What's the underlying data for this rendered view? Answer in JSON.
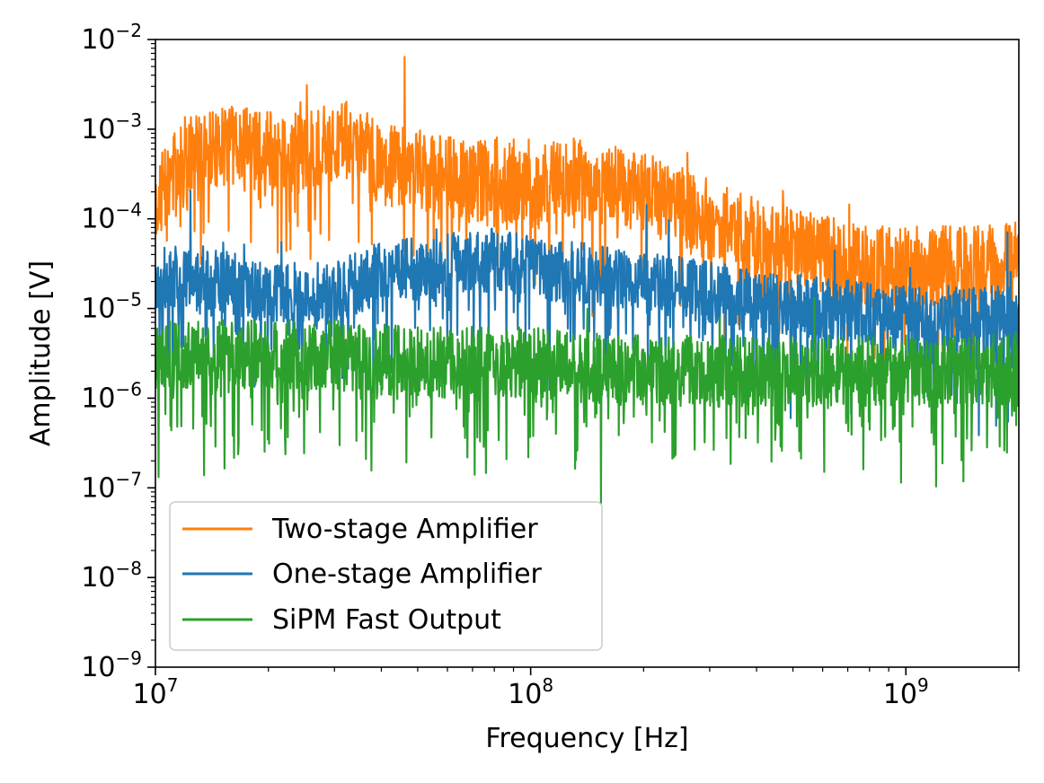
{
  "chart_data": {
    "type": "line",
    "title": "",
    "xlabel": "Frequency [Hz]",
    "ylabel": "Amplitude [V]",
    "xscale": "log",
    "yscale": "log",
    "xlim": [
      10000000,
      2000000000
    ],
    "ylim": [
      1e-09,
      0.01
    ],
    "x_ticks": [
      {
        "base": "10",
        "exp": "7",
        "value": 10000000
      },
      {
        "base": "10",
        "exp": "8",
        "value": 100000000
      },
      {
        "base": "10",
        "exp": "9",
        "value": 1000000000
      }
    ],
    "y_ticks": [
      {
        "base": "10",
        "exp": "−9",
        "value": 1e-09
      },
      {
        "base": "10",
        "exp": "−8",
        "value": 1e-08
      },
      {
        "base": "10",
        "exp": "−7",
        "value": 1e-07
      },
      {
        "base": "10",
        "exp": "−6",
        "value": 1e-06
      },
      {
        "base": "10",
        "exp": "−5",
        "value": 1e-05
      },
      {
        "base": "10",
        "exp": "−4",
        "value": 0.0001
      },
      {
        "base": "10",
        "exp": "−3",
        "value": 0.001
      },
      {
        "base": "10",
        "exp": "−2",
        "value": 0.01
      }
    ],
    "legend_position": "lower-left",
    "series": [
      {
        "name": "Two-stage Amplifier",
        "color": "#ff7f0e",
        "x": [
          10000000.0,
          12000000.0,
          15000000.0,
          18000000.0,
          22000000.0,
          27000000.0,
          33000000.0,
          40000000.0,
          50000000.0,
          60000000.0,
          70000000.0,
          80000000.0,
          100000000.0,
          120000000.0,
          150000000.0,
          200000000.0,
          300000000.0,
          400000000.0,
          600000000.0,
          800000000.0,
          1000000000.0,
          1500000000.0,
          2000000000.0
        ],
        "values": [
          0.00015,
          0.0005,
          0.0006,
          0.0007,
          0.0005,
          0.0006,
          0.0008,
          0.0004,
          0.00035,
          0.0003,
          0.00025,
          0.0003,
          0.0002,
          0.0003,
          0.00025,
          0.0002,
          0.0001,
          6e-05,
          4e-05,
          3e-05,
          3e-05,
          3e-05,
          3.5e-05
        ],
        "noise_up": 0.45,
        "noise_down": 0.85,
        "seed": 11
      },
      {
        "name": "One-stage Amplifier",
        "color": "#1f77b4",
        "x": [
          10000000.0,
          12000000.0,
          15000000.0,
          20000000.0,
          30000000.0,
          40000000.0,
          60000000.0,
          80000000.0,
          100000000.0,
          130000000.0,
          200000000.0,
          300000000.0,
          400000000.0,
          600000000.0,
          1000000000.0,
          1500000000.0,
          2000000000.0
        ],
        "values": [
          2e-05,
          2.5e-05,
          2e-05,
          1.5e-05,
          1.5e-05,
          2.5e-05,
          3e-05,
          3.5e-05,
          3e-05,
          2.5e-05,
          2e-05,
          1.5e-05,
          1.2e-05,
          1e-05,
          8e-06,
          8e-06,
          8e-06
        ],
        "noise_up": 0.35,
        "noise_down": 0.9,
        "seed": 23
      },
      {
        "name": "SiPM Fast Output",
        "color": "#2ca02c",
        "x": [
          10000000.0,
          15000000.0,
          20000000.0,
          30000000.0,
          50000000.0,
          80000000.0,
          100000000.0,
          200000000.0,
          500000000.0,
          1000000000.0,
          2000000000.0
        ],
        "values": [
          3e-06,
          3e-06,
          3e-06,
          3e-06,
          2.5e-06,
          2.5e-06,
          2.5e-06,
          2e-06,
          2e-06,
          2e-06,
          2e-06
        ],
        "noise_up": 0.4,
        "noise_down": 1.0,
        "seed": 37
      }
    ]
  }
}
